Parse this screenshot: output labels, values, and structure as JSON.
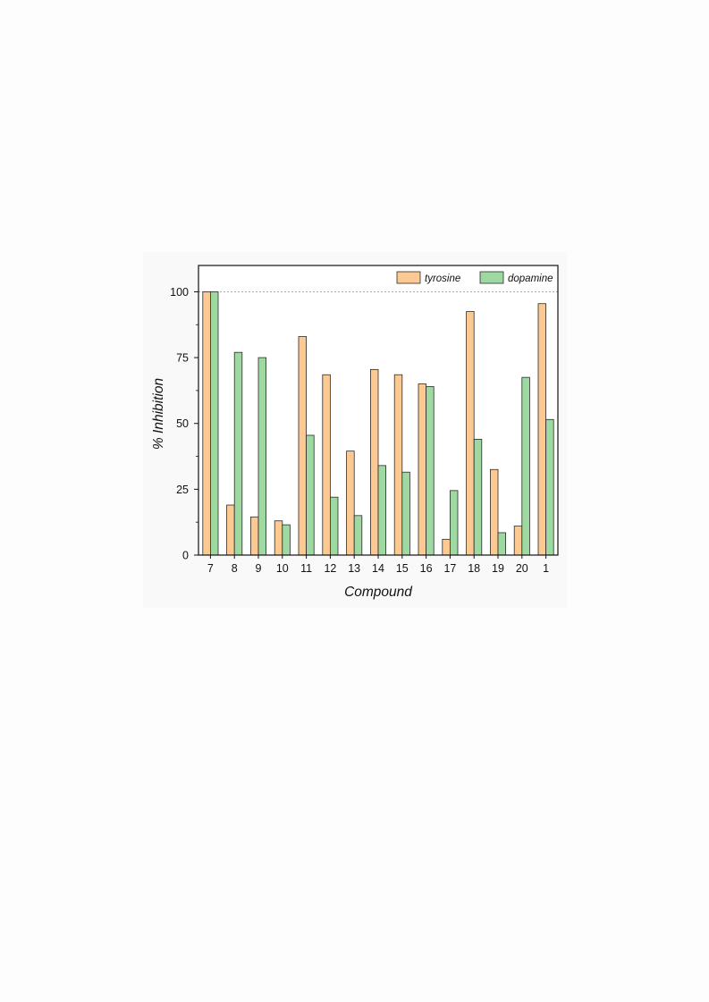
{
  "chart_data": {
    "type": "bar",
    "categories": [
      "7",
      "8",
      "9",
      "10",
      "11",
      "12",
      "13",
      "14",
      "15",
      "16",
      "17",
      "18",
      "19",
      "20",
      "1"
    ],
    "series": [
      {
        "name": "tyrosine",
        "color": "#fdc993",
        "values": [
          100,
          19,
          14.5,
          13,
          83,
          68.5,
          39.5,
          70.5,
          68.5,
          65,
          6,
          92.5,
          32.5,
          11,
          95.5
        ]
      },
      {
        "name": "dopamine",
        "color": "#9fd9a2",
        "values": [
          100,
          77,
          75,
          11.5,
          45.5,
          22,
          15,
          34,
          31.5,
          64,
          24.5,
          44,
          8.5,
          67.5,
          51.5
        ]
      }
    ],
    "xlabel": "Compound",
    "ylabel": "% Inhibition",
    "ylim": [
      0,
      110
    ],
    "yticks": [
      "0",
      "25",
      "50",
      "75",
      "100"
    ],
    "reference_line": 100,
    "legend_position": "top-right",
    "grid": false
  }
}
